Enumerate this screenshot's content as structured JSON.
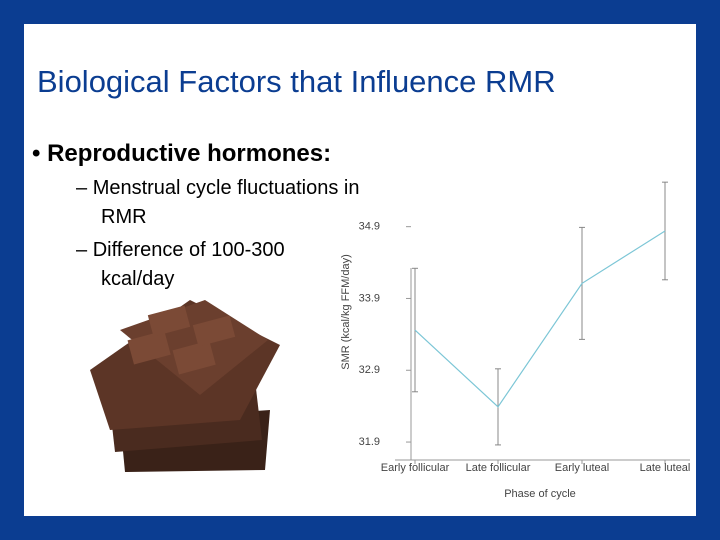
{
  "slide": {
    "title": "Biological Factors that Influence RMR",
    "bullet": "Reproductive hormones:",
    "sub_bullets": [
      "Menstrual cycle fluctuations in RMR",
      "Difference of 100-300 kcal/day"
    ]
  },
  "chart_data": {
    "type": "line",
    "categories": [
      "Early follicular",
      "Late follicular",
      "Early luteal",
      "Late luteal"
    ],
    "series": [
      {
        "color": "#7cc6d6",
        "values": [
          33.46,
          32.39,
          34.11,
          34.84
        ],
        "errors": [
          0.86,
          0.53,
          0.78,
          0.68
        ]
      }
    ],
    "ylim": [
      31.65,
      35.55
    ],
    "yticks": [
      31.9,
      32.9,
      33.9,
      34.9
    ],
    "y_label": "SMR (kcal/kg FFM/day)",
    "x_label": "Phase of cycle",
    "grid": false
  }
}
